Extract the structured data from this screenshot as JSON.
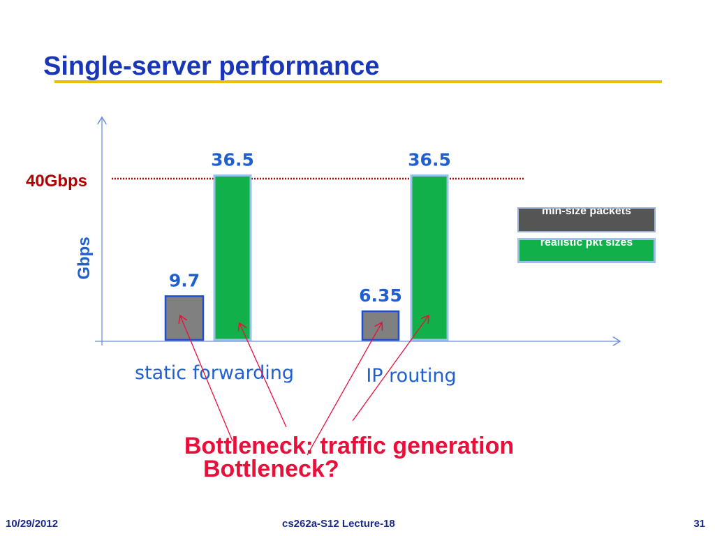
{
  "slide": {
    "title": "Single-server performance",
    "footer_date": "10/29/2012",
    "footer_course": "cs262a-S12 Lecture-18",
    "footer_page": "31"
  },
  "chart_data": {
    "type": "bar",
    "categories": [
      "static forwarding",
      "IP routing"
    ],
    "series": [
      {
        "name": "min-size packets",
        "values": [
          9.7,
          6.35
        ],
        "color": "#808080"
      },
      {
        "name": "realistic pkt sizes",
        "values": [
          36.5,
          36.5
        ],
        "color": "#12b04a"
      }
    ],
    "value_labels": [
      [
        "9.7",
        "6.35"
      ],
      [
        "36.5",
        "36.5"
      ]
    ],
    "ylabel": "Gbps",
    "ylim": [
      0,
      44
    ],
    "reference_line": {
      "label": "40Gbps",
      "value": 40,
      "color": "#b00000"
    },
    "legend_position": "right",
    "grid": false
  },
  "annotations": {
    "bottleneck_traffic": "Bottleneck: traffic generation",
    "bottleneck_question": "Bottleneck?",
    "color": "#e8103a"
  },
  "colors": {
    "title": "#1a36b8",
    "axis": "#6d8fd6",
    "label": "#1f5fd0",
    "accent_line": "#e8c100"
  }
}
